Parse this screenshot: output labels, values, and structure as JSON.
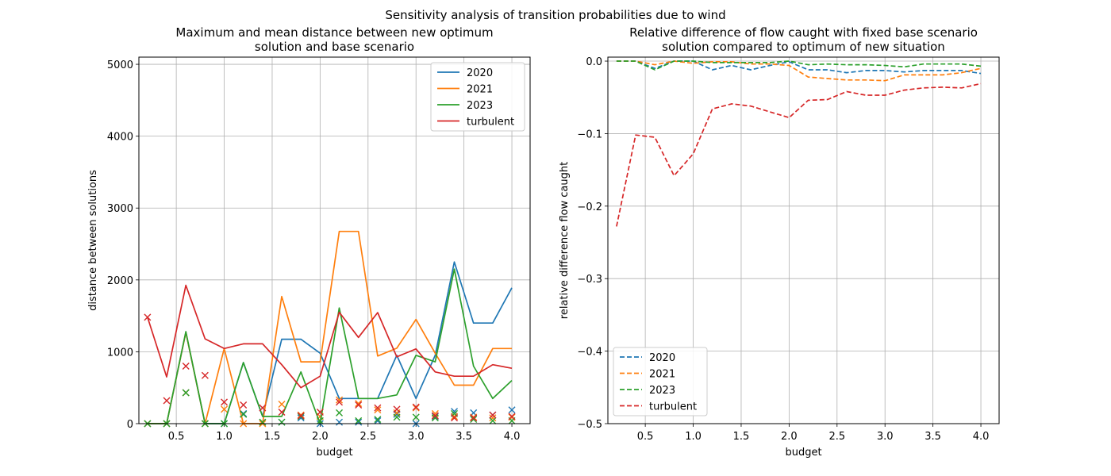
{
  "figure": {
    "suptitle": "Sensitivity analysis of transition probabilities due to wind"
  },
  "chart_data": [
    {
      "type": "line",
      "title_lines": [
        "Maximum and mean distance between new optimum",
        "solution and base scenario"
      ],
      "xlabel": "budget",
      "ylabel": "distance between solutions",
      "xlim": [
        0.11,
        4.19
      ],
      "ylim": [
        0,
        5100
      ],
      "xticks": [
        0.5,
        1.0,
        1.5,
        2.0,
        2.5,
        3.0,
        3.5,
        4.0
      ],
      "xtick_labels": [
        "0.5",
        "1.0",
        "1.5",
        "2.0",
        "2.5",
        "3.0",
        "3.5",
        "4.0"
      ],
      "yticks": [
        0,
        1000,
        2000,
        3000,
        4000,
        5000
      ],
      "ytick_labels": [
        "0",
        "1000",
        "2000",
        "3000",
        "4000",
        "5000"
      ],
      "grid": true,
      "legend": {
        "position": "upper right",
        "style": "line",
        "entries": [
          "2020",
          "2021",
          "2023",
          "turbulent"
        ]
      },
      "x": [
        0.2,
        0.4,
        0.6,
        0.8,
        1.0,
        1.2,
        1.4,
        1.6,
        1.8,
        2.0,
        2.2,
        2.4,
        2.6,
        2.8,
        3.0,
        3.2,
        3.4,
        3.6,
        3.8,
        4.0
      ],
      "series": [
        {
          "name": "2020",
          "color": "#1f77b4",
          "style": "solid",
          "values": [
            0,
            0,
            1270,
            0,
            0,
            850,
            100,
            1175,
            1175,
            980,
            350,
            350,
            350,
            950,
            350,
            950,
            2250,
            1400,
            1400,
            1890
          ],
          "markers": [
            0,
            0,
            430,
            0,
            0,
            140,
            20,
            20,
            80,
            0,
            20,
            20,
            40,
            130,
            0,
            100,
            170,
            150,
            120,
            190
          ]
        },
        {
          "name": "2021",
          "color": "#ff7f0e",
          "style": "solid",
          "values": [
            0,
            0,
            1270,
            0,
            1045,
            0,
            0,
            1770,
            860,
            860,
            2675,
            2675,
            940,
            1050,
            1450,
            980,
            535,
            535,
            1045,
            1045
          ],
          "markers": [
            0,
            0,
            430,
            0,
            200,
            0,
            0,
            270,
            120,
            100,
            330,
            280,
            190,
            150,
            220,
            140,
            100,
            90,
            80,
            90
          ]
        },
        {
          "name": "2023",
          "color": "#2ca02c",
          "style": "solid",
          "values": [
            0,
            0,
            1280,
            0,
            0,
            850,
            100,
            100,
            720,
            0,
            1610,
            350,
            350,
            400,
            950,
            860,
            2150,
            800,
            350,
            600
          ],
          "markers": [
            0,
            0,
            430,
            0,
            0,
            130,
            20,
            20,
            100,
            40,
            150,
            40,
            60,
            90,
            90,
            80,
            140,
            60,
            40,
            40
          ]
        },
        {
          "name": "turbulent",
          "color": "#d62728",
          "style": "solid",
          "values": [
            1480,
            650,
            1925,
            1180,
            1045,
            1110,
            1110,
            820,
            500,
            660,
            1550,
            1200,
            1545,
            930,
            1040,
            720,
            660,
            660,
            820,
            770
          ],
          "markers": [
            1480,
            320,
            800,
            670,
            300,
            260,
            220,
            160,
            110,
            160,
            300,
            260,
            220,
            200,
            230,
            110,
            80,
            80,
            120,
            100
          ]
        }
      ]
    },
    {
      "type": "line",
      "title_lines": [
        "Relative difference of flow caught with fixed base scenario",
        "solution compared to optimum of new situation"
      ],
      "xlabel": "budget",
      "ylabel": "relative difference flow caught",
      "xlim": [
        0.11,
        4.19
      ],
      "ylim": [
        -0.5,
        0.0055
      ],
      "xticks": [
        0.5,
        1.0,
        1.5,
        2.0,
        2.5,
        3.0,
        3.5,
        4.0
      ],
      "xtick_labels": [
        "0.5",
        "1.0",
        "1.5",
        "2.0",
        "2.5",
        "3.0",
        "3.5",
        "4.0"
      ],
      "yticks": [
        0.0,
        -0.1,
        -0.2,
        -0.3,
        -0.4,
        -0.5
      ],
      "ytick_labels": [
        "0.0",
        "−0.1",
        "−0.2",
        "−0.3",
        "−0.4",
        "−0.5"
      ],
      "grid": true,
      "legend": {
        "position": "lower left",
        "style": "dashed",
        "entries": [
          "2020",
          "2021",
          "2023",
          "turbulent"
        ]
      },
      "x": [
        0.2,
        0.4,
        0.6,
        0.8,
        1.0,
        1.2,
        1.4,
        1.6,
        1.8,
        2.0,
        2.2,
        2.4,
        2.6,
        2.8,
        3.0,
        3.2,
        3.4,
        3.6,
        3.8,
        4.0
      ],
      "series": [
        {
          "name": "2020",
          "color": "#1f77b4",
          "style": "dashed",
          "values": [
            0.0,
            0.0,
            -0.01,
            0.0,
            0.0,
            -0.012,
            -0.006,
            -0.012,
            -0.006,
            -0.001,
            -0.012,
            -0.012,
            -0.016,
            -0.013,
            -0.013,
            -0.015,
            -0.013,
            -0.013,
            -0.013,
            -0.017
          ]
        },
        {
          "name": "2021",
          "color": "#ff7f0e",
          "style": "dashed",
          "values": [
            0.0,
            0.0,
            -0.005,
            0.0,
            -0.003,
            -0.001,
            -0.001,
            -0.004,
            -0.004,
            -0.006,
            -0.022,
            -0.024,
            -0.026,
            -0.026,
            -0.027,
            -0.019,
            -0.019,
            -0.019,
            -0.016,
            -0.01
          ]
        },
        {
          "name": "2023",
          "color": "#2ca02c",
          "style": "dashed",
          "values": [
            0.0,
            0.0,
            -0.012,
            0.0,
            0.0,
            -0.002,
            -0.002,
            -0.002,
            -0.002,
            0.0,
            -0.005,
            -0.004,
            -0.005,
            -0.005,
            -0.006,
            -0.008,
            -0.004,
            -0.004,
            -0.004,
            -0.007
          ]
        },
        {
          "name": "turbulent",
          "color": "#d62728",
          "style": "dashed",
          "values": [
            -0.228,
            -0.102,
            -0.105,
            -0.158,
            -0.128,
            -0.066,
            -0.059,
            -0.062,
            -0.07,
            -0.078,
            -0.054,
            -0.053,
            -0.042,
            -0.047,
            -0.047,
            -0.04,
            -0.037,
            -0.036,
            -0.037,
            -0.031
          ]
        }
      ]
    }
  ]
}
